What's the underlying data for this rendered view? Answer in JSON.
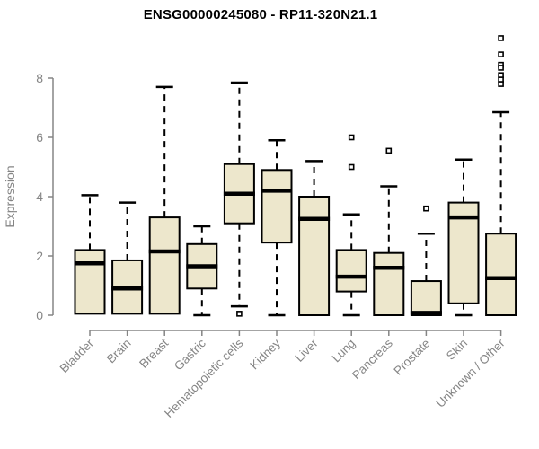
{
  "title": "ENSG00000245080 - RP11-320N21.1",
  "chart_data": {
    "type": "boxplot",
    "title": "ENSG00000245080 - RP11-320N21.1",
    "xlabel": "",
    "ylabel": "Expression",
    "yticks": [
      0,
      2,
      4,
      6,
      8
    ],
    "ylim": [
      0,
      9.6
    ],
    "grid": false,
    "legend": null,
    "categories": [
      "Bladder",
      "Brain",
      "Breast",
      "Gastric",
      "Hematopoietic cells",
      "Kidney",
      "Liver",
      "Lung",
      "Pancreas",
      "Prostate",
      "Skin",
      "Unknown / Other"
    ],
    "boxes": [
      {
        "category": "Bladder",
        "whisker_low": 0.05,
        "q1": 0.05,
        "median": 1.75,
        "q3": 2.2,
        "whisker_high": 4.05,
        "outliers": []
      },
      {
        "category": "Brain",
        "whisker_low": 0.05,
        "q1": 0.05,
        "median": 0.9,
        "q3": 1.85,
        "whisker_high": 3.8,
        "outliers": []
      },
      {
        "category": "Breast",
        "whisker_low": 0.05,
        "q1": 0.05,
        "median": 2.15,
        "q3": 3.3,
        "whisker_high": 7.7,
        "outliers": []
      },
      {
        "category": "Gastric",
        "whisker_low": 0.0,
        "q1": 0.9,
        "median": 1.65,
        "q3": 2.4,
        "whisker_high": 3.0,
        "outliers": []
      },
      {
        "category": "Hematopoietic cells",
        "whisker_low": 0.3,
        "q1": 3.1,
        "median": 4.1,
        "q3": 5.1,
        "whisker_high": 7.85,
        "outliers": [
          0.05
        ]
      },
      {
        "category": "Kidney",
        "whisker_low": 0.0,
        "q1": 2.45,
        "median": 4.2,
        "q3": 4.9,
        "whisker_high": 5.9,
        "outliers": []
      },
      {
        "category": "Liver",
        "whisker_low": 0.0,
        "q1": 0.0,
        "median": 3.25,
        "q3": 4.0,
        "whisker_high": 5.2,
        "outliers": []
      },
      {
        "category": "Lung",
        "whisker_low": 0.0,
        "q1": 0.8,
        "median": 1.3,
        "q3": 2.2,
        "whisker_high": 3.4,
        "outliers": [
          6.0,
          5.0
        ]
      },
      {
        "category": "Pancreas",
        "whisker_low": 0.0,
        "q1": 0.0,
        "median": 1.6,
        "q3": 2.1,
        "whisker_high": 4.35,
        "outliers": [
          5.55
        ]
      },
      {
        "category": "Prostate",
        "whisker_low": 0.0,
        "q1": 0.0,
        "median": 0.08,
        "q3": 1.15,
        "whisker_high": 2.75,
        "outliers": [
          3.6
        ]
      },
      {
        "category": "Skin",
        "whisker_low": 0.0,
        "q1": 0.4,
        "median": 3.3,
        "q3": 3.8,
        "whisker_high": 5.25,
        "outliers": []
      },
      {
        "category": "Unknown / Other",
        "whisker_low": 0.0,
        "q1": 0.0,
        "median": 1.25,
        "q3": 2.75,
        "whisker_high": 6.85,
        "outliers": [
          9.35,
          8.8,
          8.45,
          8.35,
          8.1,
          7.95,
          7.8
        ]
      }
    ],
    "colors": {
      "box_fill": "#EDE7CC",
      "box_border": "#000000",
      "median": "#000000",
      "whisker": "#000000",
      "outlier_stroke": "#000000",
      "axis": "#858585",
      "tick_label": "#858585",
      "title": "#000000",
      "background": "#FFFFFF"
    }
  }
}
